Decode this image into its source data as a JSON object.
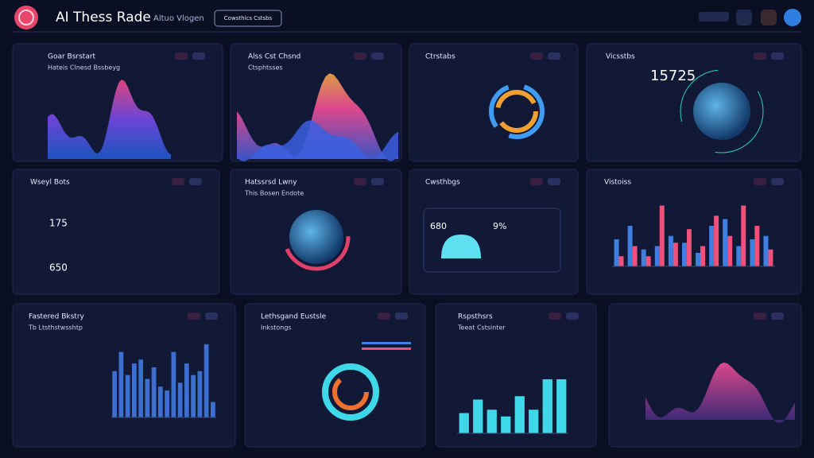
{
  "header": {
    "title": "AI Thess Rade",
    "subtitle": "Altuo Vlogen",
    "button": "Cowsthics Cstsbs"
  },
  "panels": [
    {
      "title": "Goar Bsrstart",
      "subtitle": "Hateis Clnesd Bssbeyg"
    },
    {
      "title": "Alss Cst Chsnd",
      "subtitle": "Ctsphtsses"
    },
    {
      "title": "Ctrstabs"
    },
    {
      "title": "Vicsstbs",
      "stats": [
        "15725"
      ]
    },
    {
      "title": "Wseyl Bots",
      "stats": [
        "175",
        "650"
      ]
    },
    {
      "title": "Hatssrsd Lwny",
      "subtitle": "This Bosen Endote"
    },
    {
      "title": "Cwsthbgs",
      "stats": [
        "680",
        "9%"
      ]
    },
    {
      "title": "Vistoiss",
      "ylim": [
        0,
        100
      ],
      "bars": [
        {
          "color": "#3f7fe0",
          "values": [
            40,
            60,
            25,
            30,
            45,
            35,
            20,
            60,
            70,
            30,
            40,
            45
          ]
        },
        {
          "color": "#f0507a",
          "values": [
            15,
            30,
            15,
            90,
            35,
            55,
            30,
            75,
            45,
            90,
            60,
            25
          ]
        }
      ]
    },
    {
      "title": "Fastered Bkstry",
      "subtitle": "Tb Ltsthstwsshtp",
      "ylim": [
        0,
        100
      ],
      "bars": [
        {
          "color": "#3d6fd0",
          "values": [
            60,
            85,
            55,
            70,
            75,
            50,
            65,
            40,
            35,
            85,
            45,
            70,
            55,
            60,
            95,
            20
          ]
        }
      ]
    },
    {
      "title": "Lethsgand Eustsle",
      "subtitle": "Inkstongs"
    },
    {
      "title": "Rspsthsrs",
      "subtitle": "Teeat Cstsinter",
      "ylim": [
        0,
        100
      ],
      "bars": [
        {
          "color": "#3fd8e8",
          "values": [
            30,
            50,
            35,
            25,
            55,
            35,
            80,
            80
          ]
        }
      ]
    },
    {}
  ]
}
